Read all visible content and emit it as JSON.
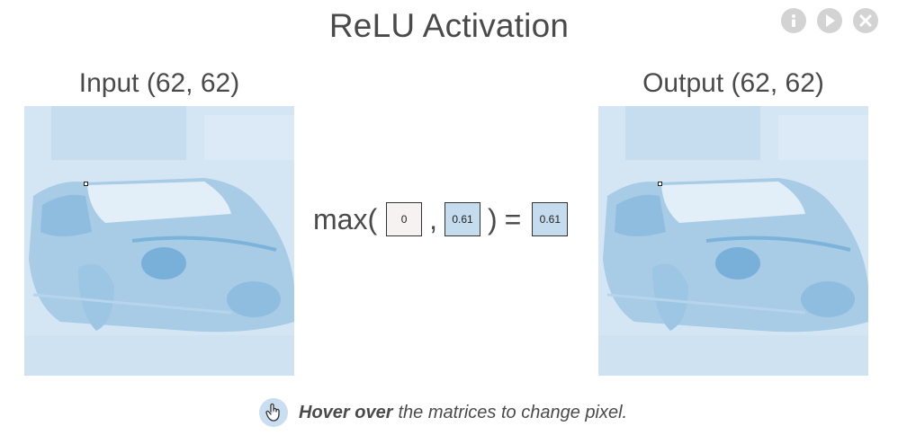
{
  "title": "ReLU Activation",
  "controls": {
    "info_icon": "info-icon",
    "play_icon": "play-icon",
    "close_icon": "close-icon"
  },
  "input": {
    "label": "Input (62, 62)"
  },
  "output": {
    "label": "Output (62, 62)"
  },
  "equation": {
    "fn": "max(",
    "zero": "0",
    "comma": ",",
    "input_value": "0.61",
    "close": ")",
    "equals": "=",
    "output_value": "0.61"
  },
  "hint": {
    "bold": "Hover over",
    "rest": "the matrices to change pixel."
  },
  "colors": {
    "text": "#4a4a4a",
    "matrix_light": "#d4e6f3",
    "matrix_dark": "#6ea8d2",
    "cell_zero": "#f6f2f2",
    "cell_value": "#c5dcee"
  }
}
